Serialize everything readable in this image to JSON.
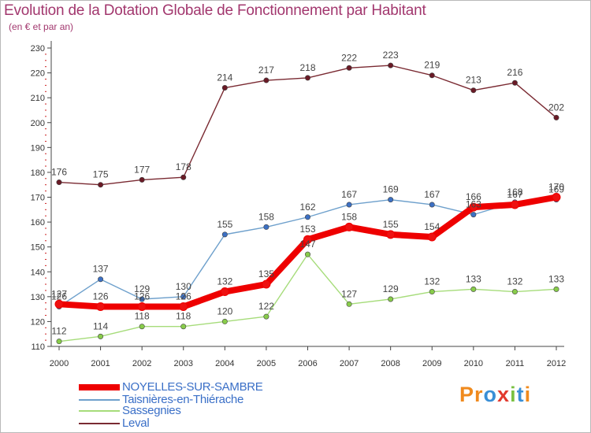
{
  "title": "Evolution de la Dotation Globale de Fonctionnement par Habitant",
  "subtitle": "(en € et par an)",
  "colors": {
    "title": "#a2376e",
    "axis": "#444444",
    "grid_tick": "#cc2222",
    "legend_text": "#3a6fc7"
  },
  "chart_data": {
    "type": "line",
    "title": "Evolution de la Dotation Globale de Fonctionnement par Habitant",
    "subtitle": "(en € et par an)",
    "x": [
      "2000",
      "2001",
      "2002",
      "2003",
      "2004",
      "2005",
      "2006",
      "2007",
      "2008",
      "2009",
      "2010",
      "2011",
      "2012"
    ],
    "ylim": [
      110,
      230
    ],
    "yticks": [
      110,
      120,
      130,
      140,
      150,
      160,
      170,
      180,
      190,
      200,
      210,
      220,
      230
    ],
    "legend_position": "bottom-left",
    "series": [
      {
        "name": "NOYELLES-SUR-SAMBRE",
        "color": "#ee0000",
        "marker": "#ee1111",
        "thick": true,
        "values": [
          127,
          126,
          126,
          126,
          132,
          135,
          153,
          158,
          155,
          154,
          166,
          167,
          170
        ]
      },
      {
        "name": "Taisnières-en-Thiérache",
        "color": "#6ea0cc",
        "marker": "#3c70c4",
        "thick": false,
        "values": [
          126,
          137,
          129,
          130,
          155,
          158,
          162,
          167,
          169,
          167,
          163,
          168,
          169
        ]
      },
      {
        "name": "Sassegnies",
        "color": "#a6dc7a",
        "marker": "#88cc4a",
        "thick": false,
        "values": [
          112,
          114,
          118,
          118,
          120,
          122,
          147,
          127,
          129,
          132,
          133,
          132,
          133
        ]
      },
      {
        "name": "Leval",
        "color": "#7a2a32",
        "marker": "#6a1a26",
        "thick": false,
        "values": [
          176,
          175,
          177,
          178,
          214,
          217,
          218,
          222,
          223,
          219,
          213,
          216,
          202
        ]
      }
    ]
  },
  "legend": {
    "items": [
      "NOYELLES-SUR-SAMBRE",
      "Taisnières-en-Thiérache",
      "Sassegnies",
      "Leval"
    ]
  },
  "logo": {
    "text": "Proxiti",
    "letters": [
      {
        "ch": "P",
        "color": "#f08a1d"
      },
      {
        "ch": "r",
        "color": "#f08a1d"
      },
      {
        "ch": "o",
        "color": "#3a8fd6"
      },
      {
        "ch": "x",
        "color": "#e23a2e"
      },
      {
        "ch": "i",
        "color": "#7ac142"
      },
      {
        "ch": "t",
        "color": "#3a8fd6"
      },
      {
        "ch": "i",
        "color": "#f08a1d"
      }
    ]
  }
}
